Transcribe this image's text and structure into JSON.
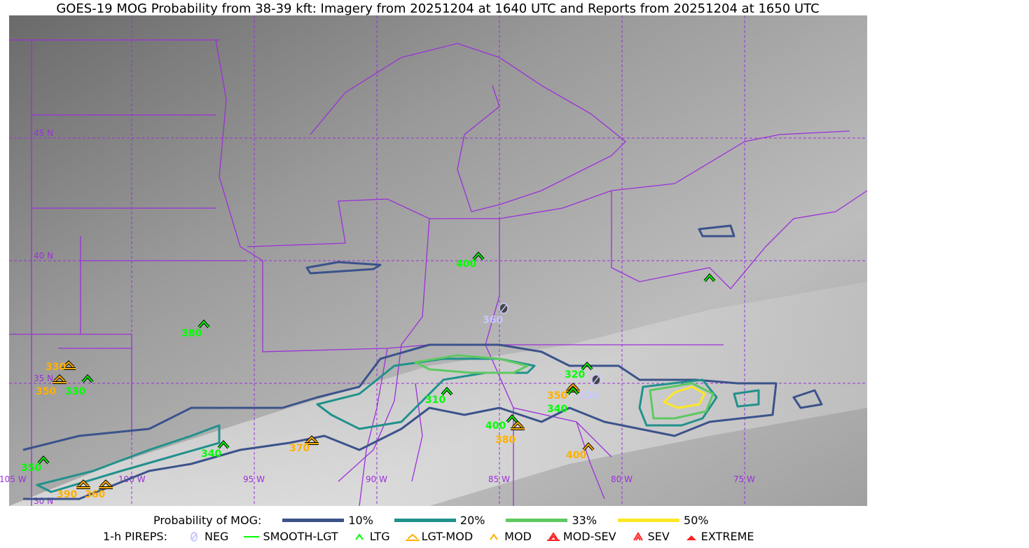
{
  "title": "GOES-19 MOG Probability from 38-39 kft: Imagery from 20251204 at 1640 UTC and Reports from 20251204 at 1650 UTC",
  "map": {
    "lon_labels": [
      "105 W",
      "100 W",
      "95 W",
      "90 W",
      "85 W",
      "80 W",
      "75 W"
    ],
    "lat_labels": [
      "45 N",
      "40 N",
      "35 N",
      "30 N"
    ],
    "colors": {
      "border": "#9b30d9",
      "grid": "#9b30d9",
      "c10": "#3b528b",
      "c20": "#21918c",
      "c33": "#5ec962",
      "c50": "#fde725"
    },
    "reports": [
      {
        "type": "LTG",
        "alt": "400"
      },
      {
        "type": "NEG",
        "alt": "360"
      },
      {
        "type": "LTG",
        "alt": "380"
      },
      {
        "type": "LGT-MOD",
        "alt": "330"
      },
      {
        "type": "LGT-MOD",
        "alt": "350"
      },
      {
        "type": "LTG",
        "alt": "330"
      },
      {
        "type": "LTG",
        "alt": "310"
      },
      {
        "type": "LTG",
        "alt": "320"
      },
      {
        "type": "LGT-MOD",
        "alt": "350"
      },
      {
        "type": "LTG",
        "alt": "340"
      },
      {
        "type": "NEG",
        "alt": "330"
      },
      {
        "type": "LTG",
        "alt": "400"
      },
      {
        "type": "LGT-MOD",
        "alt": "380"
      },
      {
        "type": "MOD",
        "alt": "400"
      },
      {
        "type": "LGT-MOD",
        "alt": "370"
      },
      {
        "type": "LTG",
        "alt": "340"
      },
      {
        "type": "LTG",
        "alt": "350"
      },
      {
        "type": "LGT-MOD",
        "alt": "390"
      },
      {
        "type": "LGT-MOD",
        "alt": "360"
      },
      {
        "type": "LTG",
        "alt": ""
      }
    ]
  },
  "legend": {
    "prob_label": "Probability of MOG:",
    "prob_levels": [
      {
        "label": "10%",
        "color": "#3b528b"
      },
      {
        "label": "20%",
        "color": "#21918c"
      },
      {
        "label": "33%",
        "color": "#5ec962"
      },
      {
        "label": "50%",
        "color": "#fde725"
      }
    ],
    "pireps_label": "1-h PIREPS:",
    "pireps": [
      {
        "label": "NEG",
        "icon": "neg-icon",
        "color": "#c8c8ff"
      },
      {
        "label": "SMOOTH-LGT",
        "icon": "line-icon",
        "color": "#00ff00"
      },
      {
        "label": "LTG",
        "icon": "caret-icon",
        "color": "#00ff00"
      },
      {
        "label": "LGT-MOD",
        "icon": "caret-bar-icon",
        "color": "#ffb000"
      },
      {
        "label": "MOD",
        "icon": "caret-icon",
        "color": "#ffb000"
      },
      {
        "label": "MOD-SEV",
        "icon": "double-caret-bar-icon",
        "color": "#ff2020"
      },
      {
        "label": "SEV",
        "icon": "double-caret-icon",
        "color": "#ff2020"
      },
      {
        "label": "EXTREME",
        "icon": "triangle-icon",
        "color": "#ff2020"
      }
    ]
  }
}
